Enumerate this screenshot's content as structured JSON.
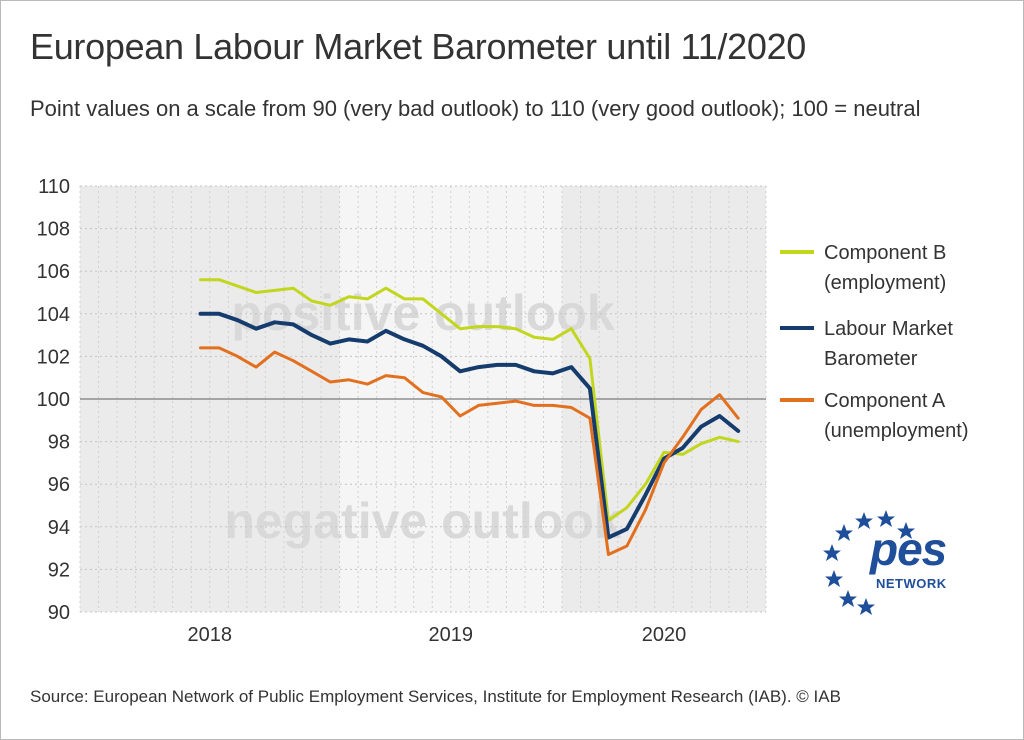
{
  "title": "European Labour Market Barometer until 11/2020",
  "subtitle": "Point values on a scale from 90 (very bad outlook) to 110 (very good outlook); 100 = neutral",
  "source": "Source: European Network of Public Employment Services, Institute for Employment Research (IAB).  © IAB",
  "background_labels": {
    "positive": "positive outlook",
    "negative": "negative outlook"
  },
  "logo": {
    "text": "pes",
    "subtext": "NETWORK"
  },
  "chart_data": {
    "type": "line",
    "ylim": [
      90,
      110
    ],
    "yticks": [
      90,
      92,
      94,
      96,
      98,
      100,
      102,
      104,
      106,
      108,
      110
    ],
    "x_year_labels": [
      "2018",
      "2019",
      "2020"
    ],
    "x_months": [
      "2017-11",
      "2017-12",
      "2018-01",
      "2018-02",
      "2018-03",
      "2018-04",
      "2018-05",
      "2018-06",
      "2018-07",
      "2018-08",
      "2018-09",
      "2018-10",
      "2018-11",
      "2018-12",
      "2019-01",
      "2019-02",
      "2019-03",
      "2019-04",
      "2019-05",
      "2019-06",
      "2019-07",
      "2019-08",
      "2019-09",
      "2019-10",
      "2019-11",
      "2019-12",
      "2020-01",
      "2020-02",
      "2020-03",
      "2020-04",
      "2020-05",
      "2020-06",
      "2020-07",
      "2020-08",
      "2020-09",
      "2020-10",
      "2020-11"
    ],
    "reference_line": 100,
    "grid": true,
    "legend_position": "right",
    "series": [
      {
        "name": "Component B (employment)",
        "label_lines": [
          "Component B",
          "(employment)"
        ],
        "color": "#c3d61e",
        "values": [
          105.6,
          105.6,
          105.3,
          105.0,
          105.1,
          105.2,
          104.6,
          104.4,
          104.8,
          104.7,
          105.2,
          104.7,
          104.7,
          104.0,
          103.3,
          103.4,
          103.4,
          103.3,
          102.9,
          102.8,
          103.3,
          101.9,
          94.3,
          94.9,
          96.0,
          97.5,
          97.4,
          97.9,
          98.2,
          98.0
        ]
      },
      {
        "name": "Labour Market Barometer",
        "label_lines": [
          "Labour Market",
          "Barometer"
        ],
        "color": "#163c6e",
        "values": [
          104.0,
          104.0,
          103.7,
          103.3,
          103.6,
          103.5,
          103.0,
          102.6,
          102.8,
          102.7,
          103.2,
          102.8,
          102.5,
          102.0,
          101.3,
          101.5,
          101.6,
          101.6,
          101.3,
          101.2,
          101.5,
          100.5,
          93.5,
          93.9,
          95.5,
          97.2,
          97.7,
          98.7,
          99.2,
          98.5
        ]
      },
      {
        "name": "Component A (unemployment)",
        "label_lines": [
          "Component A",
          "(unemployment)"
        ],
        "color": "#e2701e",
        "values": [
          102.4,
          102.4,
          102.0,
          101.5,
          102.2,
          101.8,
          101.3,
          100.8,
          100.9,
          100.7,
          101.1,
          101.0,
          100.3,
          100.1,
          99.2,
          99.7,
          99.8,
          99.9,
          99.7,
          99.7,
          99.6,
          99.1,
          92.7,
          93.1,
          94.8,
          97.0,
          98.2,
          99.5,
          100.2,
          99.1
        ]
      }
    ],
    "series_start_month": "2018-05"
  }
}
